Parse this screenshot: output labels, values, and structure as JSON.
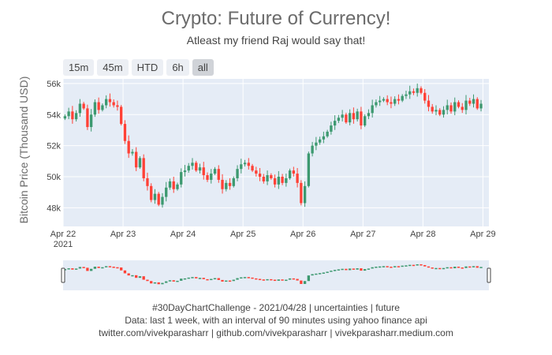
{
  "title": "Crypto: Future of Currency!",
  "subtitle": "Atleast my friend Raj would say that!",
  "range_buttons": [
    {
      "label": "15m",
      "active": false
    },
    {
      "label": "45m",
      "active": false
    },
    {
      "label": "HTD",
      "active": false
    },
    {
      "label": "6h",
      "active": false
    },
    {
      "label": "all",
      "active": true
    }
  ],
  "footer": {
    "line1": "#30DayChartChallenge - 2021/04/28 | uncertainties | future",
    "line2": "Data: last 1 week, with an interval of 90 minutes using yahoo finance api",
    "line3": "twitter.com/vivekparasharr | github.com/vivekparasharr | vivekparasharr.medium.com"
  },
  "colors": {
    "increasing": "#3d9970",
    "decreasing": "#ff4136",
    "plot_bg": "#e5ecf6",
    "grid": "#ffffff"
  },
  "chart_data": {
    "type": "candlestick",
    "title": "Crypto: Future of Currency!",
    "ylabel": "Bitcoin Price (Thousand USD)",
    "xlabel": "",
    "ylim": [
      46800,
      56300
    ],
    "xlim_days": [
      0,
      7.1
    ],
    "x_ticks": [
      {
        "day": 0,
        "label": "Apr 22",
        "sublabel": "2021"
      },
      {
        "day": 1,
        "label": "Apr 23",
        "sublabel": ""
      },
      {
        "day": 2,
        "label": "Apr 24",
        "sublabel": ""
      },
      {
        "day": 3,
        "label": "Apr 25",
        "sublabel": ""
      },
      {
        "day": 4,
        "label": "Apr 26",
        "sublabel": ""
      },
      {
        "day": 5,
        "label": "Apr 27",
        "sublabel": ""
      },
      {
        "day": 6,
        "label": "Apr 28",
        "sublabel": ""
      },
      {
        "day": 7,
        "label": "Apr 29",
        "sublabel": ""
      }
    ],
    "y_ticks": [
      {
        "value": 48000,
        "label": "48k"
      },
      {
        "value": 50000,
        "label": "50k"
      },
      {
        "value": 52000,
        "label": "52k"
      },
      {
        "value": 54000,
        "label": "54k"
      },
      {
        "value": 56000,
        "label": "56k"
      }
    ],
    "interval_minutes": 90,
    "close_prices": [
      53900,
      54200,
      53700,
      54100,
      54700,
      54400,
      53200,
      54000,
      54800,
      54300,
      54600,
      55000,
      54800,
      54600,
      54500,
      53400,
      52300,
      51500,
      51600,
      50600,
      51200,
      49900,
      49400,
      48500,
      48900,
      48200,
      48700,
      49300,
      49700,
      49200,
      49500,
      50300,
      50400,
      50700,
      50900,
      50400,
      50600,
      50100,
      49800,
      50200,
      50500,
      49800,
      49200,
      49600,
      49400,
      49900,
      50500,
      50800,
      50900,
      50700,
      50400,
      50200,
      50000,
      49700,
      50100,
      49900,
      49500,
      50000,
      49600,
      49900,
      50400,
      50200,
      49600,
      48300,
      49400,
      51500,
      52000,
      52200,
      52400,
      52600,
      52900,
      53300,
      53600,
      53800,
      54000,
      53500,
      54100,
      53700,
      54200,
      53300,
      53900,
      54100,
      54600,
      54800,
      54900,
      55000,
      54800,
      54700,
      55000,
      54900,
      55200,
      55300,
      55500,
      55400,
      55700,
      55400,
      54900,
      54500,
      54200,
      54300,
      54000,
      54300,
      54600,
      54200,
      54800,
      54500,
      54300,
      54900,
      54700,
      55000,
      54400,
      54700
    ]
  },
  "minimap": {
    "visible": true
  }
}
